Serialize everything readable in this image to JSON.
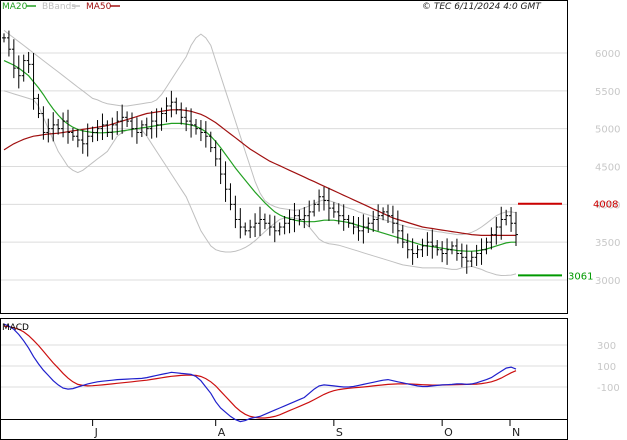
{
  "copyright": "© TEC 6/11/2024 4:0 GMT",
  "legend": [
    {
      "label": "MA20",
      "color": "#22a022"
    },
    {
      "label": "BBands",
      "color": "#c0c0c0"
    },
    {
      "label": "MA50",
      "color": "#a01010"
    }
  ],
  "colors": {
    "price": "#000000",
    "ma20": "#22a022",
    "bbands": "#c0c0c0",
    "ma50": "#a01010",
    "resistance": "#cc0000",
    "support": "#009900",
    "macd": "#2020cc",
    "signal": "#cc1010",
    "grid": "#dcdcdc"
  },
  "chart_data": [
    {
      "type": "ohlc",
      "panel": "price",
      "ylim": [
        2600,
        6500
      ],
      "yticks": [
        "3000",
        "3500",
        "4000",
        "4500",
        "5000",
        "5500",
        "6000"
      ],
      "xlabels": [
        "J",
        "A",
        "S",
        "O",
        "N"
      ],
      "close": [
        6200,
        6050,
        5800,
        5700,
        5900,
        5850,
        5400,
        5200,
        4950,
        5000,
        5050,
        5000,
        5100,
        4950,
        4900,
        4850,
        4800,
        4900,
        4950,
        5000,
        5050,
        4950,
        5050,
        5100,
        5150,
        5100,
        5000,
        4950,
        5050,
        5000,
        5100,
        5050,
        5200,
        5300,
        5350,
        5250,
        5150,
        5100,
        5050,
        5000,
        4950,
        4900,
        4750,
        4600,
        4400,
        4200,
        4000,
        3800,
        3700,
        3650,
        3700,
        3750,
        3800,
        3750,
        3700,
        3650,
        3700,
        3750,
        3800,
        3850,
        3800,
        3850,
        3900,
        4000,
        4100,
        4050,
        3950,
        3900,
        3850,
        3800,
        3750,
        3700,
        3650,
        3700,
        3750,
        3800,
        3850,
        3900,
        3850,
        3750,
        3650,
        3500,
        3400,
        3350,
        3400,
        3450,
        3500,
        3450,
        3400,
        3350,
        3400,
        3450,
        3350,
        3300,
        3250,
        3300,
        3350,
        3400,
        3500,
        3600,
        3700,
        3800,
        3850,
        3750,
        3600
      ],
      "levels": [
        {
          "label": "4008",
          "value": 4008,
          "kind": "resistance"
        },
        {
          "label": "3061",
          "value": 3061,
          "kind": "support"
        }
      ],
      "series": [
        {
          "name": "MA20",
          "values": [
            5900,
            5870,
            5840,
            5800,
            5750,
            5700,
            5620,
            5540,
            5450,
            5350,
            5260,
            5180,
            5110,
            5060,
            5020,
            4990,
            4970,
            4960,
            4950,
            4945,
            4945,
            4950,
            4955,
            4960,
            4970,
            4980,
            4990,
            5000,
            5010,
            5020,
            5030,
            5040,
            5050,
            5060,
            5070,
            5070,
            5070,
            5060,
            5050,
            5030,
            5000,
            4960,
            4900,
            4830,
            4750,
            4660,
            4570,
            4480,
            4400,
            4320,
            4240,
            4160,
            4090,
            4020,
            3960,
            3900,
            3860,
            3830,
            3810,
            3790,
            3780,
            3770,
            3770,
            3770,
            3780,
            3790,
            3790,
            3790,
            3780,
            3770,
            3760,
            3740,
            3720,
            3700,
            3680,
            3660,
            3640,
            3620,
            3600,
            3580,
            3560,
            3540,
            3520,
            3500,
            3480,
            3460,
            3450,
            3440,
            3430,
            3420,
            3410,
            3400,
            3390,
            3385,
            3380,
            3380,
            3385,
            3395,
            3410,
            3430,
            3450,
            3470,
            3490,
            3500,
            3500
          ]
        },
        {
          "name": "MA50",
          "values": [
            4720,
            4760,
            4800,
            4830,
            4860,
            4880,
            4900,
            4910,
            4920,
            4930,
            4935,
            4940,
            4950,
            4960,
            4970,
            4980,
            4990,
            5000,
            5010,
            5020,
            5030,
            5040,
            5060,
            5080,
            5100,
            5120,
            5140,
            5160,
            5180,
            5200,
            5210,
            5220,
            5230,
            5240,
            5250,
            5250,
            5250,
            5240,
            5230,
            5210,
            5190,
            5160,
            5120,
            5080,
            5030,
            4980,
            4930,
            4880,
            4830,
            4780,
            4730,
            4690,
            4650,
            4610,
            4570,
            4540,
            4510,
            4480,
            4450,
            4420,
            4390,
            4360,
            4330,
            4300,
            4270,
            4240,
            4210,
            4180,
            4150,
            4120,
            4090,
            4060,
            4030,
            4000,
            3970,
            3940,
            3910,
            3880,
            3850,
            3820,
            3800,
            3780,
            3760,
            3740,
            3720,
            3700,
            3690,
            3680,
            3670,
            3660,
            3650,
            3640,
            3630,
            3620,
            3610,
            3600,
            3595,
            3590,
            3590,
            3590,
            3590,
            3590,
            3590,
            3590,
            3590
          ]
        },
        {
          "name": "BBands upper",
          "values": [
            6300,
            6250,
            6200,
            6150,
            6100,
            6050,
            6000,
            5950,
            5900,
            5850,
            5800,
            5750,
            5700,
            5650,
            5600,
            5550,
            5500,
            5450,
            5400,
            5380,
            5350,
            5330,
            5320,
            5310,
            5300,
            5300,
            5310,
            5320,
            5330,
            5340,
            5350,
            5380,
            5450,
            5550,
            5650,
            5750,
            5850,
            5950,
            6100,
            6200,
            6250,
            6200,
            6100,
            5900,
            5700,
            5500,
            5300,
            5100,
            4900,
            4700,
            4500,
            4300,
            4150,
            4050,
            4000,
            3970,
            3950,
            3940,
            3930,
            3920,
            3930,
            3950,
            3980,
            4010,
            4040,
            4060,
            4050,
            4030,
            4000,
            3970,
            3950,
            3930,
            3900,
            3880,
            3860,
            3840,
            3820,
            3800,
            3780,
            3760,
            3740,
            3720,
            3700,
            3690,
            3680,
            3670,
            3660,
            3650,
            3640,
            3630,
            3620,
            3610,
            3600,
            3600,
            3610,
            3630,
            3660,
            3700,
            3750,
            3800,
            3850,
            3880,
            3900,
            3900,
            3890
          ]
        },
        {
          "name": "BBands lower",
          "values": [
            5500,
            5480,
            5460,
            5440,
            5420,
            5400,
            5380,
            5300,
            5150,
            5000,
            4850,
            4700,
            4600,
            4500,
            4450,
            4420,
            4450,
            4500,
            4550,
            4600,
            4650,
            4700,
            4800,
            4900,
            4950,
            4980,
            5000,
            5000,
            4980,
            4900,
            4800,
            4700,
            4600,
            4500,
            4400,
            4300,
            4200,
            4100,
            3950,
            3800,
            3650,
            3550,
            3450,
            3400,
            3380,
            3370,
            3370,
            3380,
            3400,
            3430,
            3470,
            3520,
            3580,
            3640,
            3700,
            3750,
            3800,
            3820,
            3830,
            3820,
            3800,
            3760,
            3700,
            3620,
            3540,
            3500,
            3480,
            3470,
            3460,
            3440,
            3420,
            3400,
            3380,
            3360,
            3340,
            3320,
            3300,
            3280,
            3260,
            3240,
            3220,
            3200,
            3190,
            3180,
            3170,
            3160,
            3160,
            3160,
            3160,
            3160,
            3150,
            3140,
            3140,
            3160,
            3170,
            3180,
            3160,
            3140,
            3110,
            3090,
            3070,
            3060,
            3061,
            3065,
            3080
          ]
        }
      ]
    },
    {
      "type": "line",
      "panel": "macd",
      "title": "MACD",
      "ylim": [
        -500,
        550
      ],
      "yticks": [
        "300",
        "100",
        "-100"
      ],
      "series": [
        {
          "name": "MACD",
          "values": [
            500,
            480,
            450,
            400,
            340,
            270,
            190,
            120,
            60,
            10,
            -40,
            -80,
            -110,
            -120,
            -115,
            -100,
            -85,
            -70,
            -60,
            -50,
            -45,
            -40,
            -35,
            -30,
            -28,
            -25,
            -22,
            -20,
            -18,
            -10,
            0,
            10,
            20,
            30,
            40,
            35,
            30,
            25,
            20,
            0,
            -40,
            -100,
            -160,
            -240,
            -300,
            -340,
            -380,
            -410,
            -430,
            -420,
            -400,
            -390,
            -380,
            -360,
            -340,
            -320,
            -300,
            -280,
            -260,
            -240,
            -220,
            -200,
            -160,
            -120,
            -90,
            -80,
            -85,
            -90,
            -95,
            -100,
            -100,
            -95,
            -85,
            -75,
            -65,
            -55,
            -45,
            -35,
            -30,
            -40,
            -50,
            -60,
            -70,
            -80,
            -90,
            -95,
            -95,
            -90,
            -85,
            -80,
            -78,
            -75,
            -70,
            -70,
            -75,
            -70,
            -60,
            -45,
            -30,
            -10,
            20,
            50,
            80,
            90,
            70
          ]
        },
        {
          "name": "Signal",
          "values": [
            480,
            475,
            465,
            450,
            425,
            390,
            345,
            295,
            240,
            185,
            130,
            80,
            30,
            -15,
            -50,
            -75,
            -85,
            -90,
            -88,
            -84,
            -80,
            -75,
            -70,
            -65,
            -60,
            -55,
            -50,
            -45,
            -40,
            -35,
            -28,
            -20,
            -12,
            -5,
            2,
            6,
            10,
            12,
            12,
            10,
            0,
            -20,
            -50,
            -90,
            -140,
            -190,
            -240,
            -290,
            -330,
            -360,
            -380,
            -390,
            -395,
            -395,
            -390,
            -380,
            -365,
            -345,
            -325,
            -305,
            -285,
            -265,
            -245,
            -220,
            -195,
            -170,
            -150,
            -135,
            -125,
            -118,
            -112,
            -108,
            -104,
            -100,
            -95,
            -90,
            -85,
            -80,
            -75,
            -72,
            -70,
            -70,
            -70,
            -72,
            -75,
            -78,
            -80,
            -82,
            -82,
            -81,
            -80,
            -79,
            -78,
            -76,
            -75,
            -74,
            -72,
            -68,
            -60,
            -50,
            -35,
            -15,
            10,
            35,
            55
          ]
        }
      ]
    }
  ]
}
